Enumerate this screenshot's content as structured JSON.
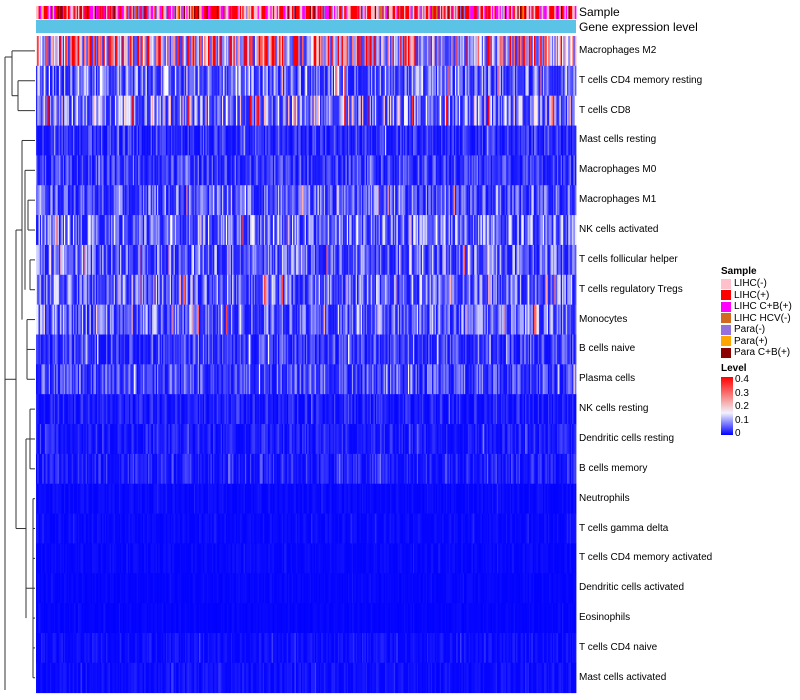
{
  "annotations": {
    "sample_label": "Sample",
    "gene_label": "Gene expression level"
  },
  "colors": {
    "low": "#0000ff",
    "mid": "#ffffff",
    "high": "#ff0000",
    "gene_bar": "#5bc3e6"
  },
  "chart_data": {
    "type": "heatmap",
    "title": "",
    "rows": [
      {
        "name": "Macrophages M2",
        "mean": 0.28
      },
      {
        "name": "T cells CD4 memory resting",
        "mean": 0.11
      },
      {
        "name": "T cells CD8",
        "mean": 0.15
      },
      {
        "name": "Mast cells resting",
        "mean": 0.05
      },
      {
        "name": "Macrophages M0",
        "mean": 0.06
      },
      {
        "name": "Macrophages M1",
        "mean": 0.09
      },
      {
        "name": "NK cells activated",
        "mean": 0.11
      },
      {
        "name": "T cells follicular helper",
        "mean": 0.1
      },
      {
        "name": "T cells regulatory  Tregs",
        "mean": 0.1
      },
      {
        "name": "Monocytes",
        "mean": 0.1
      },
      {
        "name": "B cells naive",
        "mean": 0.06
      },
      {
        "name": "Plasma cells",
        "mean": 0.07
      },
      {
        "name": "NK cells resting",
        "mean": 0.03
      },
      {
        "name": "Dendritic cells resting",
        "mean": 0.03
      },
      {
        "name": "B cells memory",
        "mean": 0.035
      },
      {
        "name": "Neutrophils",
        "mean": 0.01
      },
      {
        "name": "T cells gamma delta",
        "mean": 0.01
      },
      {
        "name": "T cells CD4 memory activated",
        "mean": 0.008
      },
      {
        "name": "Dendritic cells activated",
        "mean": 0.006
      },
      {
        "name": "Eosinophils",
        "mean": 0.005
      },
      {
        "name": "T cells CD4 naive",
        "mean": 0.015
      },
      {
        "name": "Mast cells activated",
        "mean": 0.015
      }
    ],
    "n_samples": 424,
    "legend_level": {
      "title": "Level",
      "min": 0,
      "max": 0.4,
      "ticks": [
        "0.4",
        "0.3",
        "0.2",
        "0.1",
        "0"
      ]
    },
    "legend_sample": {
      "title": "Sample",
      "items": [
        {
          "label": "LIHC(-)",
          "color": "#ffc0cb"
        },
        {
          "label": "LIHC(+)",
          "color": "#ff0000"
        },
        {
          "label": "LIHC C+B(+)",
          "color": "#ff00ff"
        },
        {
          "label": "LIHC HCV(-)",
          "color": "#d2691e"
        },
        {
          "label": "Para(-)",
          "color": "#9370db"
        },
        {
          "label": "Para(+)",
          "color": "#ffa500"
        },
        {
          "label": "Para C+B(+)",
          "color": "#8b0000"
        }
      ]
    }
  }
}
